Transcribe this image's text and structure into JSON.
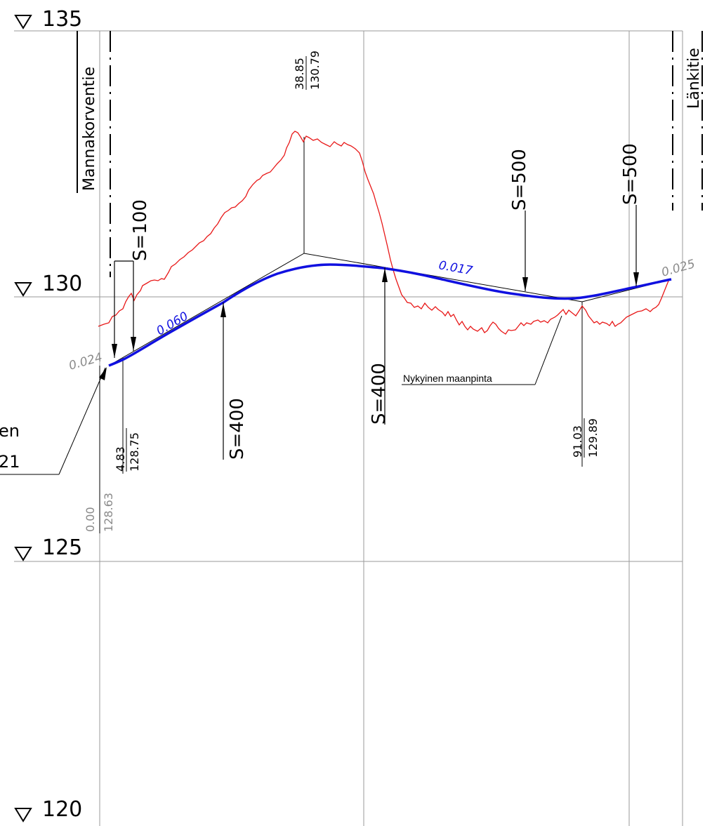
{
  "levels": [
    {
      "value": 135,
      "label": "135"
    },
    {
      "value": 130,
      "label": "130"
    },
    {
      "value": 125,
      "label": "125"
    },
    {
      "value": 120,
      "label": "120"
    }
  ],
  "roads": {
    "left": "Mannakorventie",
    "right": "Länkitie"
  },
  "curves": {
    "s100": "S=100",
    "s400_a": "S=400",
    "s400_b": "S=400",
    "s500_a": "S=500",
    "s500_b": "S=500"
  },
  "stations": {
    "start": {
      "chainage": "0.00",
      "elevation": "128.63"
    },
    "p1": {
      "chainage": "4.83",
      "elevation": "128.75"
    },
    "p2": {
      "chainage": "38.85",
      "elevation": "130.79"
    },
    "p3": {
      "chainage": "91.03",
      "elevation": "129.89"
    }
  },
  "grades": {
    "g_start": "0.024",
    "g1": "0.060",
    "g2": "0.017",
    "g_end": "0.025"
  },
  "ground_label": "Nykyinen maanpinta",
  "cut_label": {
    "line1": "en",
    "line2": "21"
  },
  "colors": {
    "design_line": "#1010e0",
    "ground_line": "#e81818",
    "grid": "#9a9a9a",
    "secondary_text": "#8a8a8a"
  }
}
